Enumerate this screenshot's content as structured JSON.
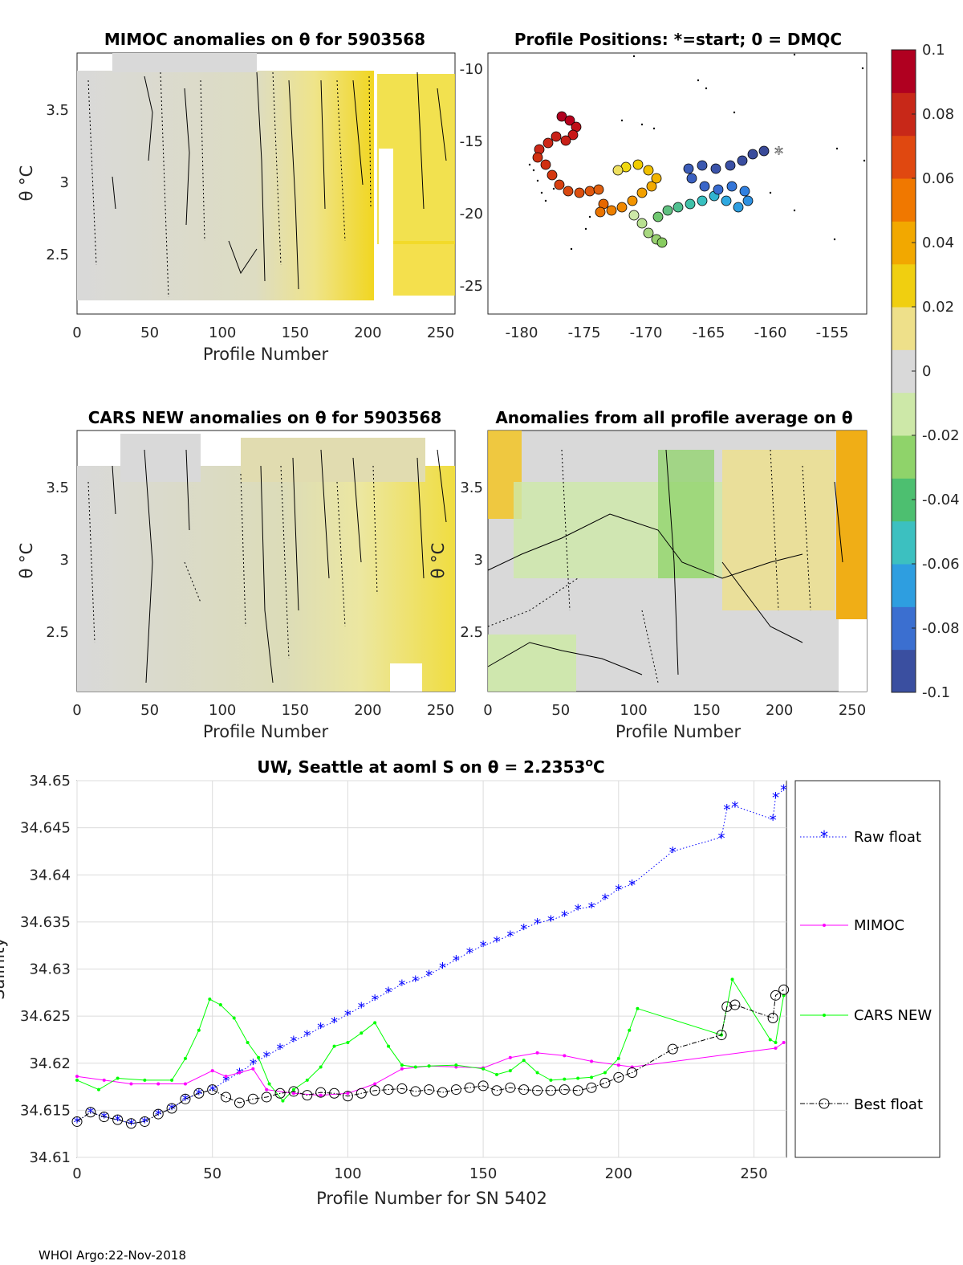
{
  "footer": "WHOI Argo:22-Nov-2018",
  "panels": {
    "mimoc": {
      "title": "MIMOC anomalies on θ  for 5903568",
      "xlabel": "Profile Number",
      "ylabel": "θ °C",
      "xticks": [
        "0",
        "50",
        "100",
        "150",
        "200",
        "250"
      ],
      "yticks": [
        "2.5",
        "3",
        "3.5"
      ]
    },
    "positions": {
      "title": "Profile Positions: *=start; 0 = DMQC",
      "xticks": [
        "-180",
        "-175",
        "-170",
        "-165",
        "-160",
        "-155"
      ],
      "yticks": [
        "-25",
        "-20",
        "-15",
        "-10"
      ]
    },
    "cars": {
      "title": "CARS NEW anomalies on θ for 5903568",
      "xlabel": "Profile Number",
      "ylabel": "θ °C",
      "xticks": [
        "0",
        "50",
        "100",
        "150",
        "200",
        "250"
      ],
      "yticks": [
        "2.5",
        "3",
        "3.5"
      ]
    },
    "allavg": {
      "title": "Anomalies from all profile average on θ",
      "xlabel": "Profile Number",
      "ylabel": "θ °C",
      "xticks": [
        "0",
        "50",
        "100",
        "150",
        "200",
        "250"
      ],
      "yticks": [
        "2.5",
        "3",
        "3.5"
      ]
    }
  },
  "colorbar": {
    "ticks": [
      "0.1",
      "0.08",
      "0.06",
      "0.04",
      "0.02",
      "0",
      "-0.02",
      "-0.04",
      "-0.06",
      "-0.08",
      "-0.1"
    ],
    "colors": [
      "#3a4fa0",
      "#3b6fd0",
      "#2e9ee0",
      "#3cc0c0",
      "#4dbf70",
      "#8fd36a",
      "#cde8a8",
      "#d9d9d9",
      "#eee08a",
      "#f0cf10",
      "#f2a800",
      "#f07800",
      "#e04810",
      "#c82818",
      "#b00020"
    ]
  },
  "chart_data": {
    "type": "line",
    "title": "UW, Seattle at aoml S on θ = 2.2353",
    "title_sup": "o",
    "title_unit": "C",
    "xlabel": "Profile Number for SN 5402",
    "ylabel": "Salinity",
    "xlim": [
      0,
      262
    ],
    "ylim": [
      34.61,
      34.65
    ],
    "xticks": [
      "0",
      "50",
      "100",
      "150",
      "200",
      "250"
    ],
    "yticks": [
      "34.61",
      "34.615",
      "34.62",
      "34.625",
      "34.63",
      "34.635",
      "34.64",
      "34.645",
      "34.65"
    ],
    "legend": [
      "Raw float",
      "MIMOC",
      "CARS NEW",
      "Best float"
    ],
    "series": [
      {
        "name": "Raw float",
        "color": "#0000ff",
        "x": [
          0,
          5,
          10,
          15,
          20,
          25,
          30,
          35,
          40,
          45,
          50,
          55,
          60,
          65,
          70,
          75,
          80,
          85,
          90,
          95,
          100,
          105,
          110,
          115,
          120,
          125,
          130,
          135,
          140,
          145,
          150,
          155,
          160,
          165,
          170,
          175,
          180,
          185,
          190,
          195,
          200,
          205,
          220,
          238,
          240,
          243,
          257,
          258,
          261
        ],
        "values": [
          34.6138,
          34.6148,
          34.6143,
          34.614,
          34.6136,
          34.6138,
          34.6146,
          34.6152,
          34.6162,
          34.6168,
          34.6172,
          34.6182,
          34.619,
          34.62,
          34.6208,
          34.6216,
          34.6224,
          34.623,
          34.6238,
          34.6244,
          34.6252,
          34.626,
          34.6268,
          34.6276,
          34.6284,
          34.6288,
          34.6294,
          34.6302,
          34.631,
          34.6318,
          34.6325,
          34.633,
          34.6336,
          34.6343,
          34.6349,
          34.6352,
          34.6357,
          34.6364,
          34.6366,
          34.6375,
          34.6385,
          34.639,
          34.6425,
          34.644,
          34.647,
          34.6473,
          34.6459,
          34.6483,
          34.6491
        ]
      },
      {
        "name": "MIMOC",
        "color": "#ff00ff",
        "x": [
          0,
          10,
          20,
          30,
          40,
          50,
          55,
          60,
          65,
          70,
          80,
          90,
          100,
          110,
          120,
          130,
          140,
          150,
          160,
          170,
          180,
          190,
          200,
          205,
          258,
          261
        ],
        "values": [
          34.6186,
          34.6182,
          34.6178,
          34.6178,
          34.6178,
          34.6192,
          34.6186,
          34.619,
          34.6194,
          34.6172,
          34.6168,
          34.6166,
          34.6168,
          34.6178,
          34.6194,
          34.6197,
          34.6196,
          34.6195,
          34.6206,
          34.6211,
          34.6208,
          34.6202,
          34.6198,
          34.6196,
          34.6216,
          34.6222
        ]
      },
      {
        "name": "CARS NEW",
        "color": "#00ff00",
        "x": [
          0,
          8,
          15,
          25,
          35,
          40,
          45,
          49,
          53,
          58,
          63,
          67,
          71,
          76,
          80,
          85,
          90,
          95,
          100,
          105,
          110,
          115,
          120,
          125,
          130,
          140,
          150,
          155,
          160,
          165,
          170,
          175,
          180,
          185,
          190,
          195,
          200,
          204,
          207,
          238,
          242,
          256,
          258,
          261
        ],
        "values": [
          34.6182,
          34.6172,
          34.6184,
          34.6182,
          34.6182,
          34.6205,
          34.6235,
          34.6268,
          34.6262,
          34.6248,
          34.6222,
          34.6206,
          34.6178,
          34.616,
          34.6172,
          34.6182,
          34.6196,
          34.6218,
          34.6222,
          34.6232,
          34.6243,
          34.6218,
          34.6198,
          34.6196,
          34.6197,
          34.6198,
          34.6194,
          34.6188,
          34.6192,
          34.6203,
          34.619,
          34.6182,
          34.6183,
          34.6184,
          34.6185,
          34.619,
          34.6205,
          34.6235,
          34.6258,
          34.623,
          34.6289,
          34.6225,
          34.6222,
          34.6272
        ]
      },
      {
        "name": "Best float",
        "color": "#000000",
        "x": [
          0,
          5,
          10,
          15,
          20,
          25,
          30,
          35,
          40,
          45,
          50,
          55,
          60,
          65,
          70,
          75,
          80,
          85,
          90,
          95,
          100,
          105,
          110,
          115,
          120,
          125,
          130,
          135,
          140,
          145,
          150,
          155,
          160,
          165,
          170,
          175,
          180,
          185,
          190,
          195,
          200,
          205,
          220,
          238,
          240,
          243,
          257,
          258,
          261
        ],
        "values": [
          34.6138,
          34.6148,
          34.6143,
          34.614,
          34.6136,
          34.6138,
          34.6146,
          34.6152,
          34.6162,
          34.6168,
          34.6172,
          34.6164,
          34.6158,
          34.6162,
          34.6164,
          34.6168,
          34.617,
          34.6166,
          34.6169,
          34.6168,
          34.6165,
          34.6168,
          34.6171,
          34.6172,
          34.6173,
          34.617,
          34.6172,
          34.6169,
          34.6172,
          34.6174,
          34.6176,
          34.6171,
          34.6174,
          34.6172,
          34.6171,
          34.6171,
          34.6172,
          34.6171,
          34.6174,
          34.6179,
          34.6185,
          34.619,
          34.6215,
          34.623,
          34.626,
          34.6262,
          34.6248,
          34.6272,
          34.6278
        ]
      }
    ]
  }
}
